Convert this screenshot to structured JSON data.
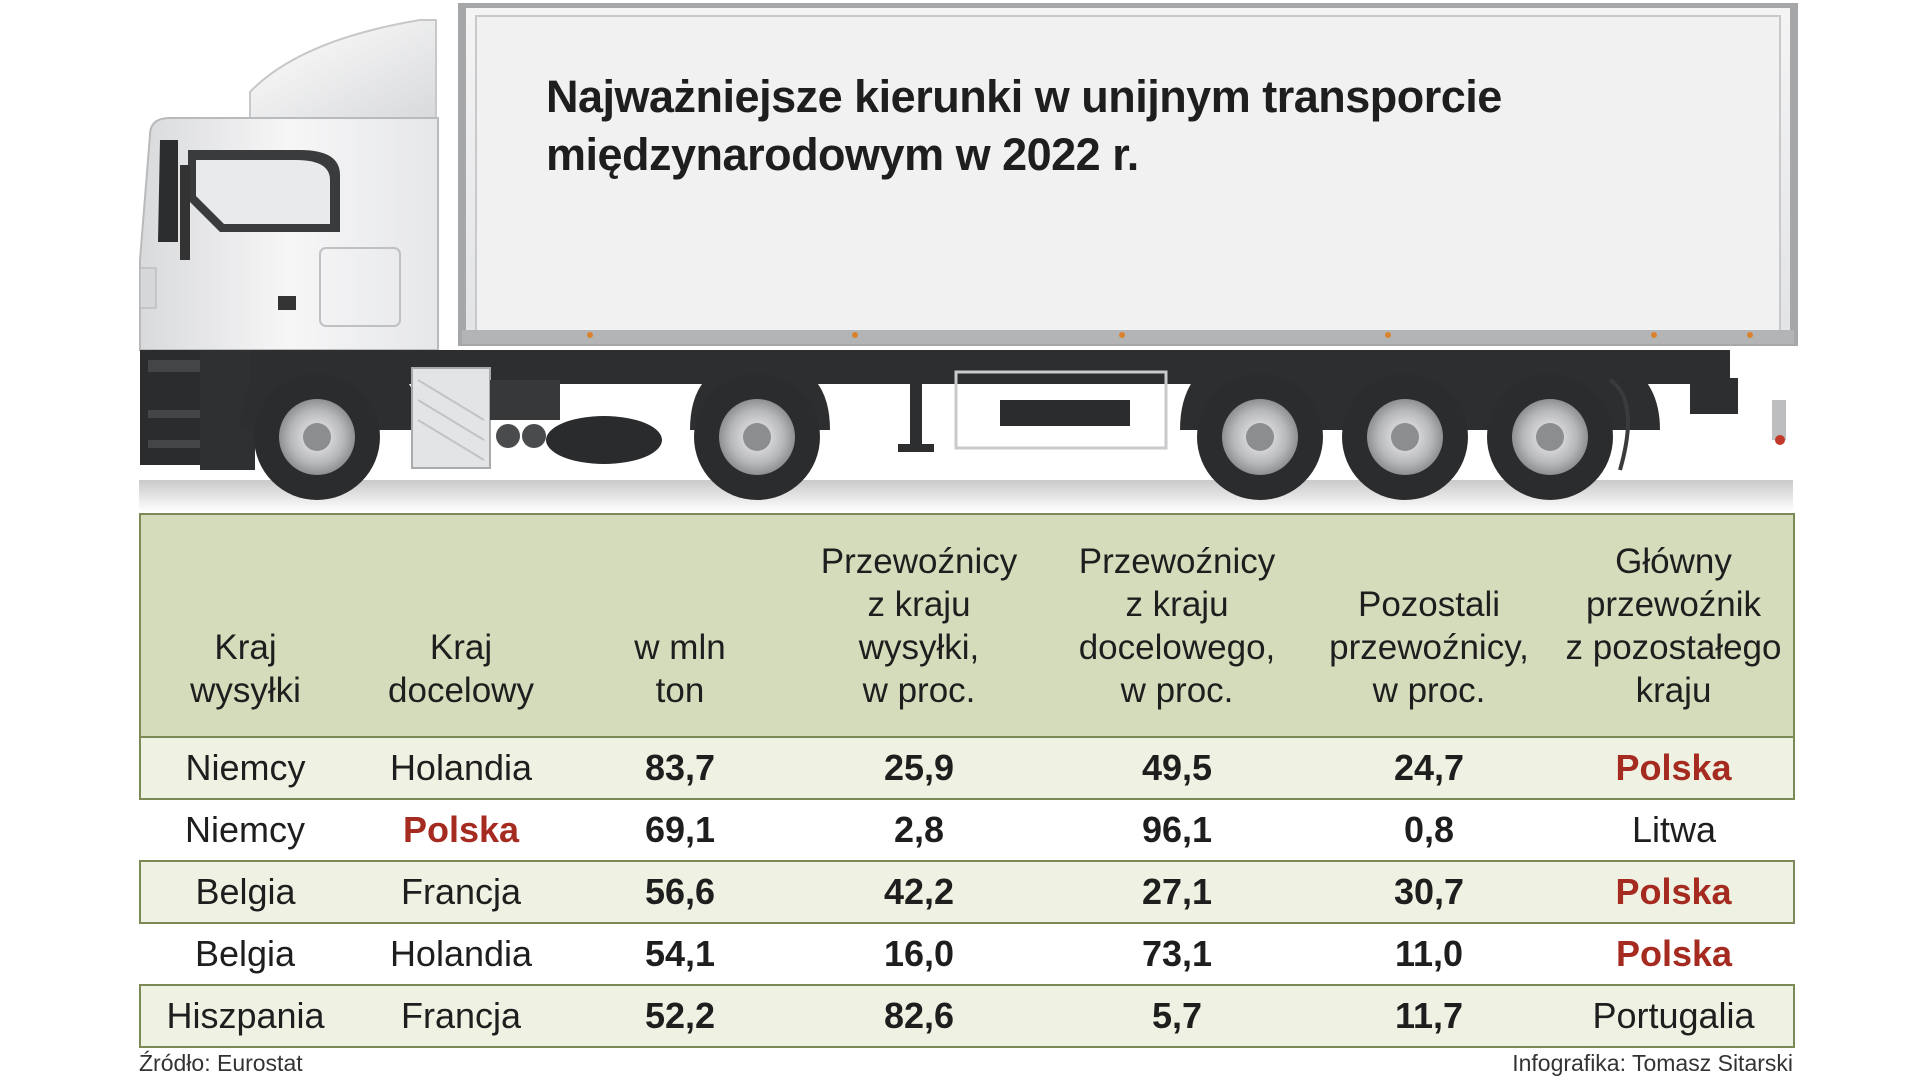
{
  "title": {
    "line1": "Najważniejsze kierunki w unijnym transporcie",
    "line2": "międzynarodowym w 2022 r."
  },
  "table": {
    "headers": [
      [
        "Kraj",
        "wysyłki"
      ],
      [
        "Kraj",
        "docelowy"
      ],
      [
        "w mln",
        "ton"
      ],
      [
        "Przewoźnicy",
        "z kraju",
        "wysyłki,",
        "w proc."
      ],
      [
        "Przewoźnicy",
        "z kraju",
        "docelowego,",
        "w proc."
      ],
      [
        "Pozostali",
        "przewoźnicy,",
        "w proc."
      ],
      [
        "Główny",
        "przewoźnik",
        "z pozostałego",
        "kraju"
      ]
    ],
    "rows": [
      {
        "origin": "Niemcy",
        "destination": "Holandia",
        "mln_ton": "83,7",
        "origin_carriers": "25,9",
        "dest_carriers": "49,5",
        "other_carriers": "24,7",
        "main_other": "Polska"
      },
      {
        "origin": "Niemcy",
        "destination": "Polska",
        "mln_ton": "69,1",
        "origin_carriers": "2,8",
        "dest_carriers": "96,1",
        "other_carriers": "0,8",
        "main_other": "Litwa"
      },
      {
        "origin": "Belgia",
        "destination": "Francja",
        "mln_ton": "56,6",
        "origin_carriers": "42,2",
        "dest_carriers": "27,1",
        "other_carriers": "30,7",
        "main_other": "Polska"
      },
      {
        "origin": "Belgia",
        "destination": "Holandia",
        "mln_ton": "54,1",
        "origin_carriers": "16,0",
        "dest_carriers": "73,1",
        "other_carriers": "11,0",
        "main_other": "Polska"
      },
      {
        "origin": "Hiszpania",
        "destination": "Francja",
        "mln_ton": "52,2",
        "origin_carriers": "82,6",
        "dest_carriers": "5,7",
        "other_carriers": "11,7",
        "main_other": "Portugalia"
      }
    ],
    "highlight_value": "Polska"
  },
  "footer": {
    "source": "Źródło: Eurostat",
    "credit": "Infografika: Tomasz Sitarski"
  },
  "colors": {
    "header_bg": "#d4dcbb",
    "row_shade": "#eff2e2",
    "border": "#7c8a58",
    "highlight": "#a52a1f",
    "text": "#1e1e1e"
  }
}
